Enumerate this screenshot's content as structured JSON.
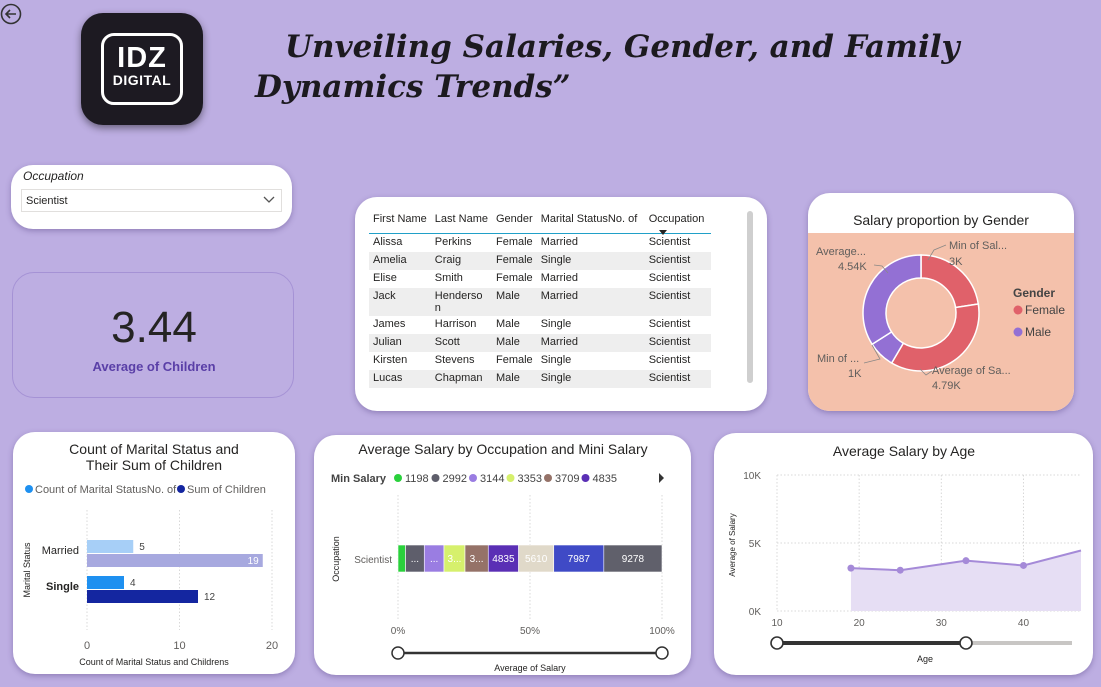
{
  "header": {
    "title": "Unveiling Salaries, Gender, and Family Dynamics Trends”",
    "logo_line1": "IDZ",
    "logo_line2": "DIGITAL"
  },
  "slicer": {
    "label": "Occupation",
    "value": "Scientist"
  },
  "kpi": {
    "value": "3.44",
    "label": "Average of Children"
  },
  "table": {
    "columns": [
      "First Name",
      "Last Name",
      "Gender",
      "Marital StatusNo. of",
      "Occupation"
    ],
    "rows": [
      [
        "Alissa",
        "Perkins",
        "Female",
        "Married",
        "Scientist"
      ],
      [
        "Amelia",
        "Craig",
        "Female",
        "Single",
        "Scientist"
      ],
      [
        "Elise",
        "Smith",
        "Female",
        "Married",
        "Scientist"
      ],
      [
        "Jack",
        "Henderso n",
        "Male",
        "Married",
        "Scientist"
      ],
      [
        "James",
        "Harrison",
        "Male",
        "Single",
        "Scientist"
      ],
      [
        "Julian",
        "Scott",
        "Male",
        "Married",
        "Scientist"
      ],
      [
        "Kirsten",
        "Stevens",
        "Female",
        "Single",
        "Scientist"
      ],
      [
        "Lucas",
        "Chapman",
        "Male",
        "Single",
        "Scientist"
      ]
    ]
  },
  "chart_data": [
    {
      "type": "pie",
      "title": "Salary proportion by Gender",
      "legend_title": "Gender",
      "legend_position": "right",
      "slices": [
        {
          "name": "Female",
          "label": "Min of Sal...",
          "value_label": "3K",
          "value": 3000,
          "color": "#e0616a"
        },
        {
          "name": "Female",
          "label": "Average of Sa...",
          "value_label": "4.79K",
          "value": 4790,
          "color": "#e0616a"
        },
        {
          "name": "Male",
          "label": "Min of ...",
          "value_label": "1K",
          "value": 1000,
          "color": "#9370d4"
        },
        {
          "name": "Male",
          "label": "Average...",
          "value_label": "4.54K",
          "value": 4540,
          "color": "#9370d4"
        }
      ],
      "legend": [
        {
          "name": "Female",
          "color": "#e0616a"
        },
        {
          "name": "Male",
          "color": "#9370d4"
        }
      ]
    },
    {
      "type": "bar",
      "orientation": "horizontal",
      "title": "Count of Marital Status and Their Sum of Children",
      "categories": [
        "Married",
        "Single"
      ],
      "series": [
        {
          "name": "Count of Marital StatusNo. of",
          "values": [
            5,
            4
          ],
          "color": "#1e90f0"
        },
        {
          "name": "Sum of Children",
          "values": [
            19,
            12
          ],
          "color": "#1426a0"
        }
      ],
      "bar_colors": [
        [
          "#a7cff7",
          "#a7a9df"
        ],
        [
          "#1e90f0",
          "#1426a0"
        ]
      ],
      "xlabel": "Count of Marital Status and Childrens",
      "ylabel": "Marital Status",
      "xlim": [
        0,
        20
      ],
      "xticks": [
        0,
        10,
        20
      ]
    },
    {
      "type": "bar",
      "orientation": "horizontal",
      "stacked": "100%",
      "title": "Average Salary by Occupation and Mini Salary",
      "legend_title": "Min Salary",
      "legend": [
        {
          "name": "1198",
          "color": "#2ad13c"
        },
        {
          "name": "2992",
          "color": "#5e5e6b"
        },
        {
          "name": "3144",
          "color": "#9a7de2"
        },
        {
          "name": "3353",
          "color": "#d6f06c"
        },
        {
          "name": "3709",
          "color": "#957268"
        },
        {
          "name": "4835",
          "color": "#5a2fb5"
        }
      ],
      "categories": [
        "Scientist"
      ],
      "segments": [
        {
          "min_salary": "1198",
          "value": 1198,
          "label": "",
          "color": "#2ad13c"
        },
        {
          "min_salary": "2992",
          "value": 2992,
          "label": "...",
          "color": "#5e5e6b"
        },
        {
          "min_salary": "3144",
          "value": 3144,
          "label": "...",
          "color": "#9a7de2"
        },
        {
          "min_salary": "3353",
          "value": 3353,
          "label": "3...",
          "color": "#d6f06c"
        },
        {
          "min_salary": "3709",
          "value": 3709,
          "label": "3...",
          "color": "#957268"
        },
        {
          "min_salary": "4835",
          "value": 4835,
          "label": "4835",
          "color": "#5a2fb5"
        },
        {
          "min_salary": "5610",
          "value": 5610,
          "label": "5610",
          "color": "#e0d9c9"
        },
        {
          "min_salary": "7987",
          "value": 7987,
          "label": "7987",
          "color": "#3f4ac6"
        },
        {
          "min_salary": "9278",
          "value": 9278,
          "label": "9278",
          "color": "#60606b"
        }
      ],
      "xlabel": "Average of Salary",
      "ylabel": "Occupation",
      "xticks": [
        "0%",
        "50%",
        "100%"
      ]
    },
    {
      "type": "area",
      "title": "Average Salary by Age",
      "x": [
        19,
        25,
        33,
        40,
        47
      ],
      "y": [
        3150,
        3000,
        3700,
        3350,
        4450
      ],
      "xlabel": "Age",
      "ylabel": "Average of Salary",
      "xlim": [
        10,
        47
      ],
      "ylim": [
        0,
        10000
      ],
      "xticks": [
        10,
        20,
        30,
        40
      ],
      "yticks": [
        "0K",
        "5K",
        "10K"
      ],
      "color": "#a58ad8",
      "slider_range": [
        10,
        33
      ]
    }
  ]
}
